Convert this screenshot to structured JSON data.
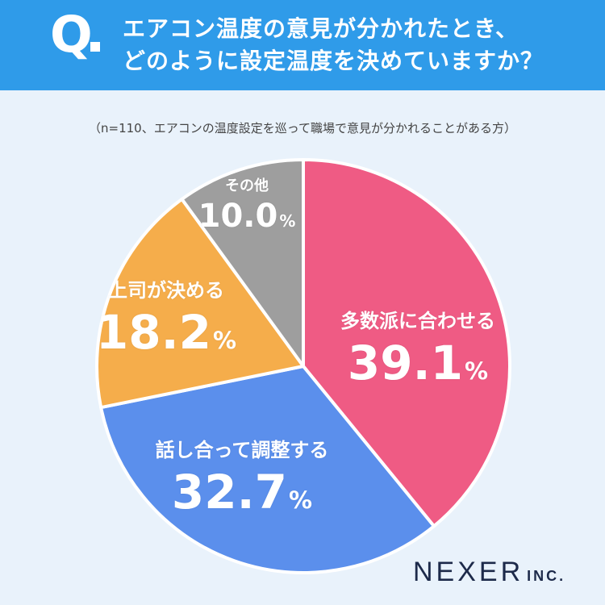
{
  "header": {
    "q_mark": "Q",
    "question_line1": "エアコン温度の意見が分かれたとき、",
    "question_line2": "どのように設定温度を決めていますか？"
  },
  "note": "（n=110、エアコンの温度設定を巡って職場で意見が分かれることがある方）",
  "logo": {
    "main": "NEXER",
    "sub": "INC."
  },
  "colors": {
    "header_bg": "#2f9be9",
    "background": "#e9f2fb",
    "slice_1": "#ef5b84",
    "slice_2": "#5b8fec",
    "slice_3": "#f5ad4b",
    "slice_4": "#9e9e9e"
  },
  "chart_data": {
    "type": "pie",
    "title": "エアコン温度の意見が分かれたとき、どのように設定温度を決めていますか？",
    "slices": [
      {
        "label": "多数派に合わせる",
        "value": 39.1,
        "display": "39.1",
        "color": "#ef5b84"
      },
      {
        "label": "話し合って調整する",
        "value": 32.7,
        "display": "32.7",
        "color": "#5b8fec"
      },
      {
        "label": "上司が決める",
        "value": 18.2,
        "display": "18.2",
        "color": "#f5ad4b"
      },
      {
        "label": "その他",
        "value": 10.0,
        "display": "10.0",
        "color": "#9e9e9e"
      }
    ],
    "unit": "%",
    "start_angle": "12 o'clock",
    "direction": "clockwise",
    "legend": "none"
  }
}
